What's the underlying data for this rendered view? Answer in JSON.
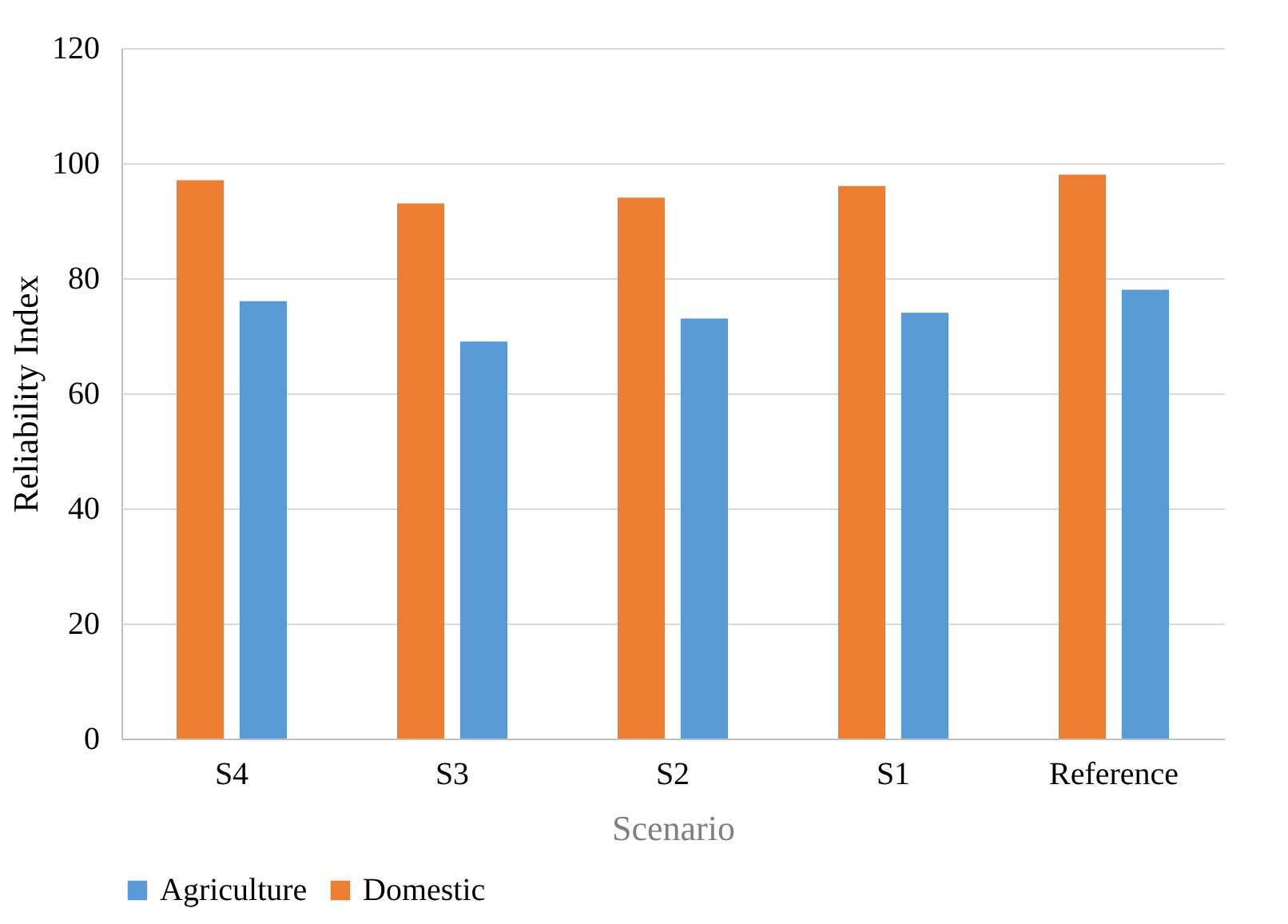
{
  "chart_data": {
    "type": "bar",
    "xlabel": "Scenario",
    "ylabel": "Reliability Index",
    "categories": [
      "S4",
      "S3",
      "S2",
      "S1",
      "Reference"
    ],
    "series": [
      {
        "name": "Agriculture",
        "color": "#5b9bd5",
        "values": [
          76,
          69,
          73,
          74,
          78
        ]
      },
      {
        "name": "Domestic",
        "color": "#ed7d31",
        "values": [
          97,
          93,
          94,
          96,
          98
        ]
      }
    ],
    "ylim": [
      0,
      120
    ],
    "yticks": [
      0,
      20,
      40,
      60,
      80,
      100,
      120
    ],
    "grid": "y",
    "legend": "bottom"
  }
}
